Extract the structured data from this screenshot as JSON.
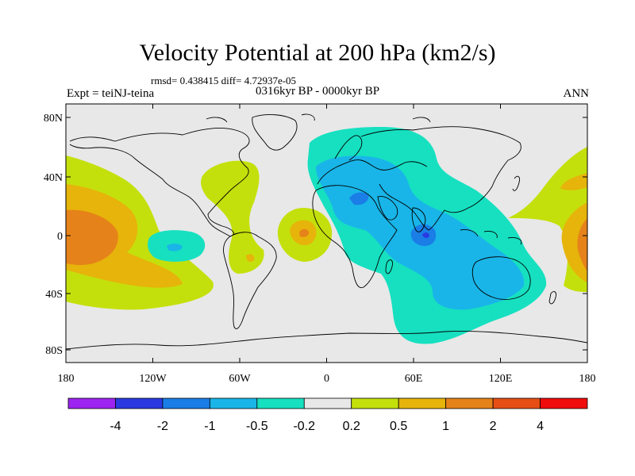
{
  "title": "Velocity Potential at 200 hPa (km2/s)",
  "stats_text": "rmsd= 0.438415 diff= 4.72937e-05",
  "experiment_label": "Expt = teiNJ-teina",
  "period_label": "0316kyr BP - 0000kyr BP",
  "season_label": "ANN",
  "lon_ticks": [
    "180",
    "120W",
    "60W",
    "0",
    "60E",
    "120E",
    "180"
  ],
  "lat_ticks": [
    "80N",
    "40N",
    "0",
    "40S",
    "80S"
  ],
  "colorbar": {
    "labels": [
      "-4",
      "-2",
      "-1",
      "-0.5",
      "-0.2",
      "0.2",
      "0.5",
      "1",
      "2",
      "4"
    ],
    "colors": [
      "#9d24f0",
      "#2a3ae0",
      "#1a7ee6",
      "#19b5e8",
      "#16e0c0",
      "#e8e8e8",
      "#c4e00c",
      "#e6b40a",
      "#e6821a",
      "#e64e14",
      "#f00c0c"
    ]
  },
  "colors": {
    "land_outline": "#000000",
    "background_shading": "#e8e8e8"
  }
}
